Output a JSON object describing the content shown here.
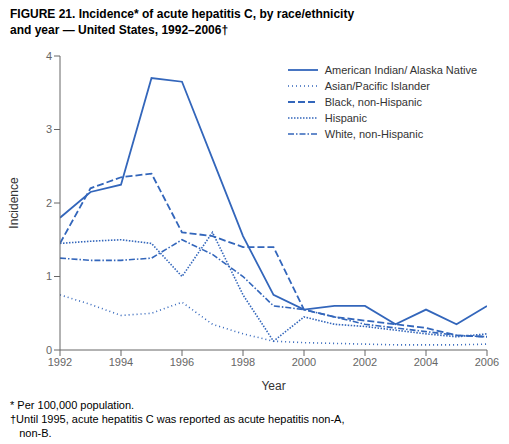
{
  "chart_data": {
    "type": "line",
    "title": "FIGURE 21. Incidence* of acute hepatitis C, by race/ethnicity\nand year — United States, 1992–2006†",
    "annotations": [
      "* Per 100,000 population.",
      "†Until 1995, acute hepatitis C was reported as acute hepatitis non-A,",
      "   non-B."
    ],
    "x_label": "Year",
    "y_label": "Incidence",
    "x": [
      1992,
      1993,
      1994,
      1995,
      1996,
      1997,
      1998,
      1999,
      2000,
      2001,
      2002,
      2003,
      2004,
      2005,
      2006
    ],
    "xlim": [
      1992,
      2006
    ],
    "xticks": [
      1992,
      1994,
      1996,
      1998,
      2000,
      2002,
      2004,
      2006
    ],
    "ylim": [
      0,
      4
    ],
    "yticks": [
      0,
      1,
      2,
      3,
      4
    ],
    "grid": false,
    "legend": "upper right",
    "series": [
      {
        "name": "American Indian/ Alaska Native",
        "color": "#3366BB",
        "line_style": "solid",
        "values": [
          1.8,
          2.15,
          2.25,
          3.7,
          3.65,
          2.6,
          1.55,
          0.75,
          0.55,
          0.6,
          0.6,
          0.35,
          0.55,
          0.35,
          0.6
        ]
      },
      {
        "name": "Asian/Pacific Islander",
        "color": "#3366BB",
        "line_style": "loosely dotted",
        "values": [
          0.75,
          0.62,
          0.47,
          0.5,
          0.65,
          0.35,
          0.22,
          0.12,
          0.1,
          0.09,
          0.08,
          0.07,
          0.07,
          0.07,
          0.08
        ]
      },
      {
        "name": "Black, non-Hispanic",
        "color": "#3366BB",
        "line_style": "dashed",
        "values": [
          1.45,
          2.2,
          2.35,
          2.4,
          1.6,
          1.55,
          1.4,
          1.4,
          0.55,
          0.45,
          0.4,
          0.35,
          0.3,
          0.2,
          0.18
        ]
      },
      {
        "name": "Hispanic",
        "color": "#3366BB",
        "line_style": "dotted",
        "values": [
          1.45,
          1.48,
          1.5,
          1.45,
          1.0,
          1.6,
          0.75,
          0.12,
          0.45,
          0.35,
          0.32,
          0.27,
          0.22,
          0.18,
          0.22
        ]
      },
      {
        "name": "White, non-Hispanic",
        "color": "#3366BB",
        "line_style": "dashdot",
        "values": [
          1.25,
          1.22,
          1.22,
          1.25,
          1.5,
          1.3,
          1.0,
          0.6,
          0.55,
          0.45,
          0.35,
          0.3,
          0.25,
          0.2,
          0.18
        ]
      }
    ]
  }
}
